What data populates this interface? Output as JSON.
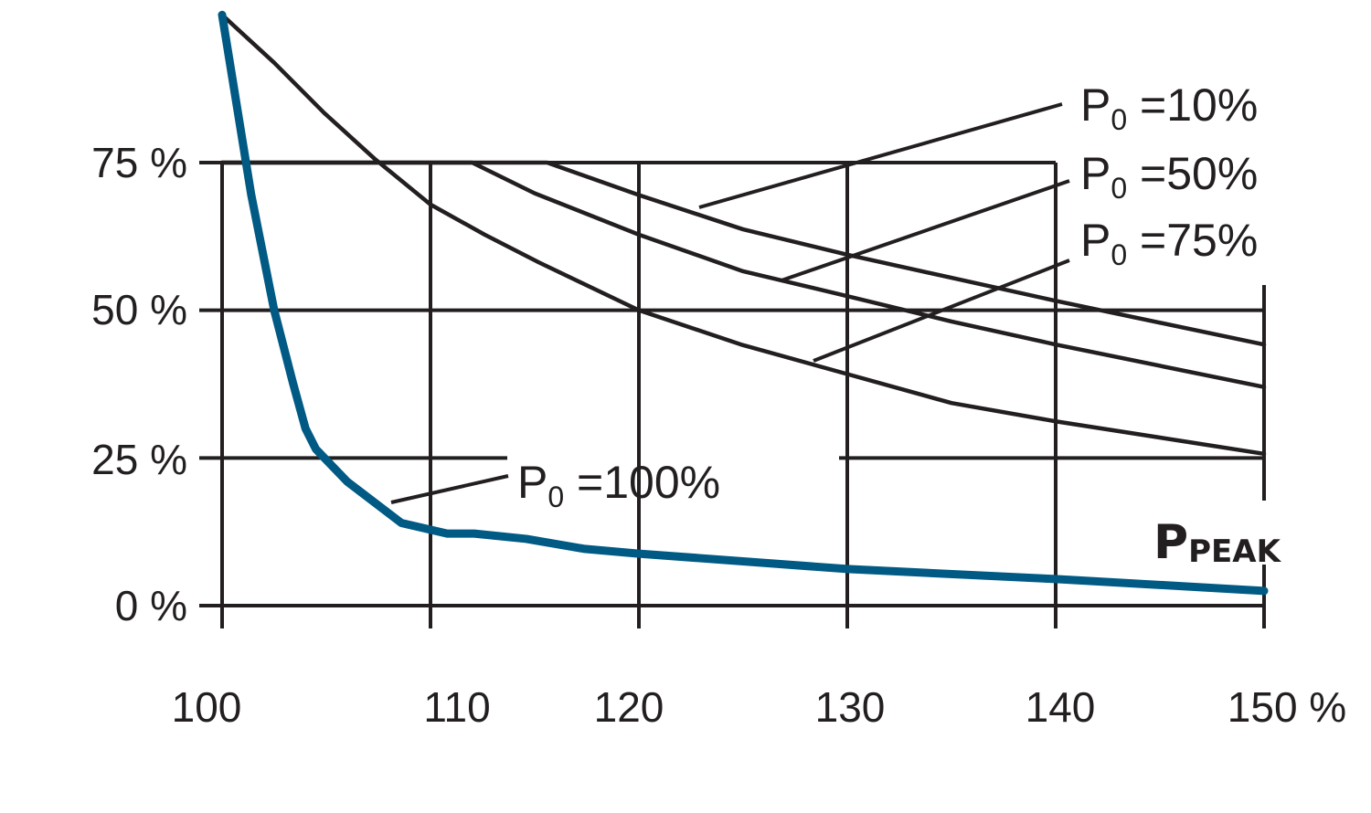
{
  "chart_data": {
    "type": "line",
    "title": "",
    "xlabel": "",
    "ylabel": "",
    "xlim": [
      100,
      150
    ],
    "ylim": [
      0,
      100
    ],
    "x_ticks": [
      "100",
      "110",
      "120",
      "130",
      "140",
      "150 %"
    ],
    "y_ticks": [
      "0 %",
      "25 %",
      "50 %",
      "75 %"
    ],
    "axis_label_right": {
      "main": "P",
      "subscript": "PEAK"
    },
    "grid": true,
    "series": [
      {
        "name": "P0 =10%",
        "label_main": "P",
        "label_sub": "0",
        "label_rest": " =10%",
        "color": "#231f20",
        "x": [
          100,
          115.6,
          120,
          125,
          130,
          135,
          140,
          150
        ],
        "y": [
          75,
          75,
          69.5,
          63.7,
          59.4,
          55.5,
          51.6,
          44.2
        ]
      },
      {
        "name": "P0 =50%",
        "label_main": "P",
        "label_sub": "0",
        "label_rest": " =50%",
        "color": "#231f20",
        "x": [
          100,
          112,
          115,
          120,
          125,
          130,
          135,
          140,
          150
        ],
        "y": [
          75,
          75,
          69.8,
          62.8,
          56.6,
          52.4,
          48.1,
          44.2,
          37
        ]
      },
      {
        "name": "P0 =75%",
        "label_main": "P",
        "label_sub": "0",
        "label_rest": " =75%",
        "color": "#231f20",
        "x": [
          100,
          102.5,
          104.9,
          107.3,
          110,
          112.6,
          115.2,
          120,
          124.9,
          130,
          135,
          140,
          150
        ],
        "y": [
          100,
          91.9,
          83.4,
          75.7,
          67.9,
          62.8,
          58.1,
          50,
          44.2,
          39.2,
          34.3,
          31.2,
          25.7
        ]
      },
      {
        "name": "P0 =100%",
        "label_main": "P",
        "label_sub": "0",
        "label_rest": " =100%",
        "color": "#005a84",
        "x": [
          100,
          101.4,
          102.5,
          103.4,
          104,
          104.5,
          106,
          108.6,
          110.8,
          112.1,
          114.6,
          117.4,
          120,
          130,
          140,
          150
        ],
        "y": [
          100,
          69.5,
          50,
          37.7,
          30,
          26.5,
          21,
          14,
          12.2,
          12.2,
          11.3,
          9.6,
          8.8,
          6.2,
          4.5,
          2.5
        ]
      }
    ]
  }
}
